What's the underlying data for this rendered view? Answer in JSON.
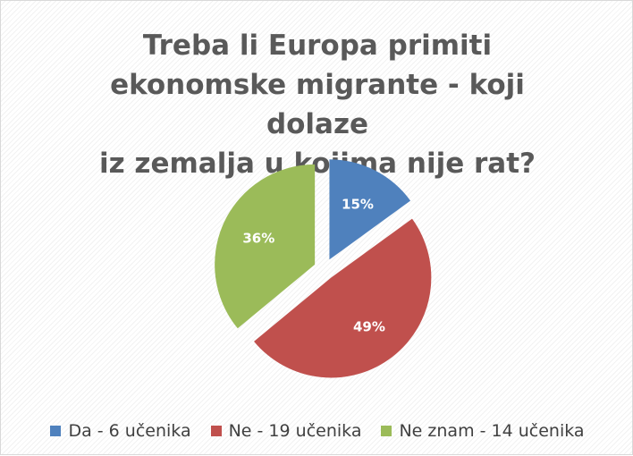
{
  "chart_data": {
    "type": "pie",
    "title_lines": [
      "Treba li Europa primiti",
      "ekonomske migrante - koji dolaze",
      "iz zemalja u kojima nije rat?"
    ],
    "categories": [
      "Da - 6 učenika",
      "Ne - 19 učenika",
      "Ne znam - 14 učenika"
    ],
    "values": [
      15,
      49,
      36
    ],
    "data_labels": [
      "15%",
      "49%",
      "36%"
    ],
    "colors": [
      "#4f81bd",
      "#c0504d",
      "#9bbb59"
    ],
    "exploded": true,
    "legend_position": "bottom"
  }
}
